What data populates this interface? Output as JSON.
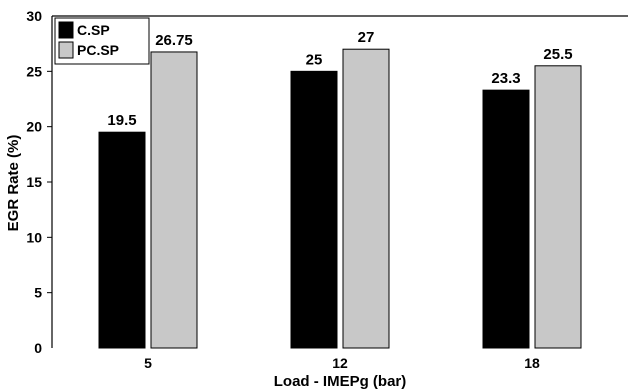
{
  "chart_data": {
    "type": "bar",
    "categories": [
      "5",
      "12",
      "18"
    ],
    "series": [
      {
        "name": "C.SP",
        "values": [
          19.5,
          25,
          23.3
        ],
        "labels": [
          "19.5",
          "25",
          "23.3"
        ],
        "color": "#000000"
      },
      {
        "name": "PC.SP",
        "values": [
          26.75,
          27,
          25.5
        ],
        "labels": [
          "26.75",
          "27",
          "25.5"
        ],
        "color": "#c8c8c8"
      }
    ],
    "title": "",
    "xlabel": "Load - IMEPg (bar)",
    "ylabel": "EGR Rate (%)",
    "ylim": [
      0,
      30
    ],
    "yticks": [
      0,
      5,
      10,
      15,
      20,
      25,
      30
    ],
    "ytick_labels": [
      "0",
      "5",
      "10",
      "15",
      "20",
      "25",
      "30"
    ],
    "grid": false,
    "legend_position": "top-left"
  }
}
